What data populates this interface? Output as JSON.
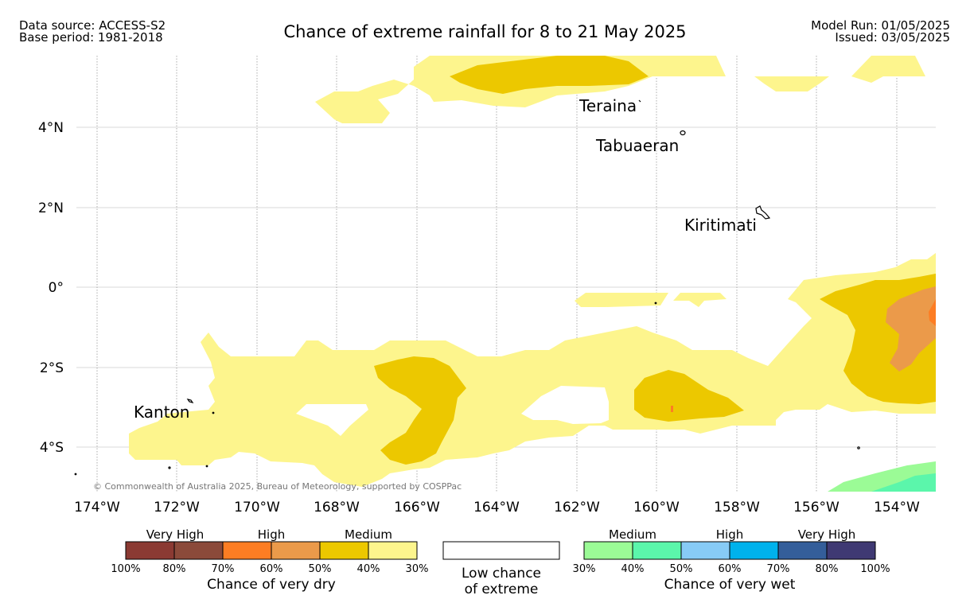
{
  "header": {
    "source": "Data source: ACCESS-S2",
    "base": "Base period: 1981-2018",
    "title": "Chance of extreme rainfall for 8 to 21 May 2025",
    "model_run": "Model Run: 01/05/2025",
    "issued": "Issued: 03/05/2025"
  },
  "map": {
    "lat_labels": [
      "4°N",
      "2°N",
      "0°",
      "2°S",
      "4°S"
    ],
    "lon_labels": [
      "174°W",
      "172°W",
      "170°W",
      "168°W",
      "166°W",
      "164°W",
      "162°W",
      "160°W",
      "158°W",
      "156°W",
      "154°W"
    ],
    "places": {
      "teraina": "Teraina",
      "tabuaeran": "Tabuaeran",
      "kiritimati": "Kiritimati",
      "kanton": "Kanton"
    },
    "copyright": "© Commonwealth of Australia 2025, Bureau of Meteorology, supported by COSPPac"
  },
  "legend": {
    "dry": {
      "groups": [
        "Very High",
        "High",
        "Medium"
      ],
      "percent_labels": [
        "100%",
        "80%",
        "70%",
        "60%",
        "50%",
        "40%",
        "30%"
      ],
      "colors": [
        "#8b3a33",
        "#8b4a3a",
        "#fd7d23",
        "#eb9a4a",
        "#ecc800",
        "#fdf58d"
      ],
      "title": "Chance of very dry"
    },
    "low": {
      "line1": "Low chance",
      "line2": "of extreme",
      "color": "#ffffff"
    },
    "wet": {
      "groups": [
        "Medium",
        "High",
        "Very High"
      ],
      "percent_labels": [
        "30%",
        "40%",
        "50%",
        "60%",
        "70%",
        "80%",
        "100%"
      ],
      "colors": [
        "#9bfb96",
        "#5bf6ab",
        "#87cbf6",
        "#00b2ec",
        "#345e9a",
        "#3f3973"
      ],
      "title": "Chance of very wet"
    }
  }
}
